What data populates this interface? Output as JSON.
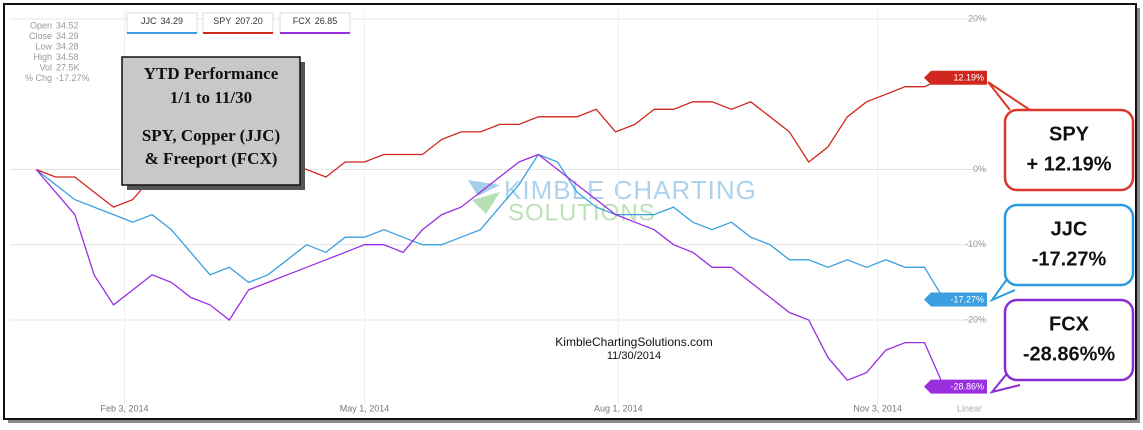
{
  "chart_data": {
    "type": "line",
    "quote": [
      {
        "label": "Open",
        "value": "34.52"
      },
      {
        "label": "Close",
        "value": "34.29"
      },
      {
        "label": "Low",
        "value": "34.28"
      },
      {
        "label": "High",
        "value": "34.58"
      },
      {
        "label": "Vol",
        "value": "27.5K"
      },
      {
        "label": "% Chg",
        "value": "-17.27%"
      }
    ],
    "title_lines": [
      "YTD Performance",
      "1/1 to 11/30",
      "SPY, Copper (JJC)",
      "& Freeport (FCX)"
    ],
    "watermark": [
      "KIMBLE CHARTING",
      "SOLUTIONS"
    ],
    "footer": [
      "KimbleChartingSolutions.com",
      "11/30/2014"
    ],
    "scale_label": "Linear",
    "x": [
      1,
      8,
      15,
      22,
      29,
      36,
      43,
      50,
      57,
      64,
      71,
      78,
      85,
      92,
      99,
      106,
      113,
      120,
      127,
      134,
      141,
      148,
      155,
      162,
      169,
      176,
      183,
      190,
      197,
      204,
      211,
      218,
      225,
      232,
      239,
      246,
      253,
      260,
      267,
      274,
      281,
      288,
      295,
      302,
      309,
      316,
      323,
      330
    ],
    "xlim": [
      -8.5,
      346
    ],
    "xticks": [
      {
        "value": 33,
        "label": "Feb 3, 2014"
      },
      {
        "value": 120,
        "label": "May 1, 2014"
      },
      {
        "value": 212,
        "label": "Aug 1, 2014"
      },
      {
        "value": 306,
        "label": "Nov 3, 2014"
      }
    ],
    "ylim": [
      -31.3,
      21.2
    ],
    "yticks": [
      {
        "value": 20,
        "label": "20%"
      },
      {
        "value": 0,
        "label": "0%"
      },
      {
        "value": -10,
        "label": "-10%"
      },
      {
        "value": -20,
        "label": "-20%"
      }
    ],
    "grid": true,
    "series": [
      {
        "name": "JJC",
        "legend_value": "34.29",
        "color": "#3a9fe0",
        "values": [
          0,
          -2,
          -4,
          -5,
          -6,
          -7,
          -6,
          -8,
          -11,
          -14,
          -13,
          -15,
          -14,
          -12,
          -10,
          -11,
          -9,
          -9,
          -8,
          -9,
          -10,
          -10,
          -9,
          -8,
          -5,
          -2,
          2,
          1,
          -3,
          -5,
          -6,
          -6,
          -6,
          -5,
          -7,
          -8,
          -7,
          -9,
          -10,
          -12,
          -12,
          -13,
          -12,
          -13,
          -12,
          -13,
          -13,
          -17.27
        ],
        "value_labels": [
          null,
          null,
          null,
          null,
          null,
          null,
          null,
          null,
          null,
          null,
          null,
          null,
          null,
          null,
          null,
          null,
          null,
          null,
          null,
          null,
          null,
          null,
          null,
          null,
          null,
          null,
          null,
          null,
          null,
          null,
          null,
          null,
          null,
          null,
          null,
          null,
          null,
          null,
          null,
          null,
          null,
          null,
          null,
          null,
          null,
          null,
          null,
          "-17.27%"
        ]
      },
      {
        "name": "SPY",
        "legend_value": "207.20",
        "color": "#d0281e",
        "values": [
          0,
          -1,
          -1,
          -3,
          -5,
          -4,
          -1,
          0,
          1,
          0,
          1,
          0,
          -1,
          1,
          0,
          -1,
          1,
          1,
          2,
          2,
          2,
          4,
          5,
          5,
          6,
          6,
          7,
          7,
          7,
          8,
          5,
          6,
          8,
          8,
          9,
          9,
          8,
          9,
          7,
          5,
          1,
          3,
          7,
          9,
          10,
          11,
          11,
          12.19
        ],
        "value_labels": [
          null,
          null,
          null,
          null,
          null,
          null,
          null,
          null,
          null,
          null,
          null,
          null,
          null,
          null,
          null,
          null,
          null,
          null,
          null,
          null,
          null,
          null,
          null,
          null,
          null,
          null,
          null,
          null,
          null,
          null,
          null,
          null,
          null,
          null,
          null,
          null,
          null,
          null,
          null,
          null,
          null,
          null,
          null,
          null,
          null,
          null,
          null,
          "12.19%"
        ]
      },
      {
        "name": "FCX",
        "legend_value": "26.85",
        "color": "#9a2fe0",
        "values": [
          0,
          -3,
          -6,
          -14,
          -18,
          -16,
          -14,
          -15,
          -17,
          -18,
          -20,
          -16,
          -15,
          -14,
          -13,
          -12,
          -11,
          -10,
          -10,
          -11,
          -8,
          -6,
          -5,
          -3,
          -1,
          1,
          2,
          0,
          -2,
          -4,
          -6,
          -7,
          -8,
          -10,
          -11,
          -13,
          -13,
          -15,
          -17,
          -19,
          -20,
          -25,
          -28,
          -27,
          -24,
          -23,
          -23,
          -28.86
        ],
        "value_labels": [
          null,
          null,
          null,
          null,
          null,
          null,
          null,
          null,
          null,
          null,
          null,
          null,
          null,
          null,
          null,
          null,
          null,
          null,
          null,
          null,
          null,
          null,
          null,
          null,
          null,
          null,
          null,
          null,
          null,
          null,
          null,
          null,
          null,
          null,
          null,
          null,
          null,
          null,
          null,
          null,
          null,
          null,
          null,
          null,
          null,
          null,
          null,
          "-28.86%"
        ]
      }
    ],
    "annotations": [
      {
        "lines": [
          "SPY",
          "+ 12.19%"
        ],
        "color": "#d9382b"
      },
      {
        "lines": [
          "JJC",
          "-17.27%"
        ],
        "color": "#2a9be0"
      },
      {
        "lines": [
          "FCX",
          "-28.86%%"
        ],
        "color": "#8e2bd6"
      }
    ]
  }
}
